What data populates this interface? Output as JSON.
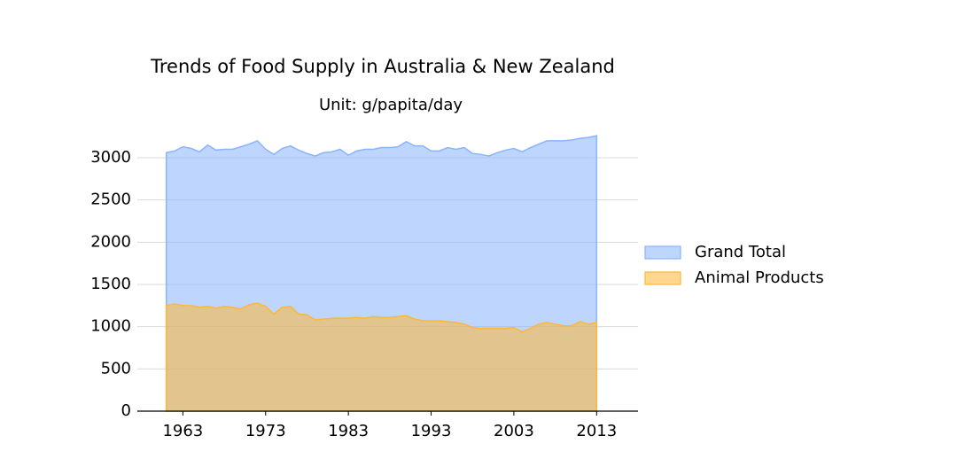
{
  "chart_data": {
    "type": "area",
    "title": "Trends of Food Supply in Australia & New Zealand",
    "subtitle": "Unit: g/papita/day",
    "x": [
      1961,
      1962,
      1963,
      1964,
      1965,
      1966,
      1967,
      1968,
      1969,
      1970,
      1971,
      1972,
      1973,
      1974,
      1975,
      1976,
      1977,
      1978,
      1979,
      1980,
      1981,
      1982,
      1983,
      1984,
      1985,
      1986,
      1987,
      1988,
      1989,
      1990,
      1991,
      1992,
      1993,
      1994,
      1995,
      1996,
      1997,
      1998,
      1999,
      2000,
      2001,
      2002,
      2003,
      2004,
      2005,
      2006,
      2007,
      2008,
      2009,
      2010,
      2011,
      2012,
      2013
    ],
    "series": [
      {
        "name": "Grand Total",
        "color": "#89b4fe",
        "values": [
          3060,
          3080,
          3130,
          3110,
          3070,
          3150,
          3090,
          3100,
          3100,
          3130,
          3160,
          3200,
          3100,
          3040,
          3110,
          3140,
          3090,
          3050,
          3020,
          3060,
          3070,
          3100,
          3030,
          3080,
          3100,
          3100,
          3120,
          3120,
          3130,
          3190,
          3140,
          3140,
          3080,
          3080,
          3120,
          3100,
          3120,
          3050,
          3040,
          3020,
          3060,
          3090,
          3110,
          3070,
          3120,
          3160,
          3200,
          3200,
          3200,
          3210,
          3230,
          3240,
          3260
        ]
      },
      {
        "name": "Animal Products",
        "color": "#ffb733",
        "values": [
          1250,
          1270,
          1250,
          1250,
          1230,
          1240,
          1220,
          1240,
          1230,
          1210,
          1260,
          1280,
          1240,
          1150,
          1230,
          1240,
          1150,
          1140,
          1080,
          1090,
          1100,
          1100,
          1100,
          1110,
          1100,
          1120,
          1110,
          1110,
          1120,
          1130,
          1090,
          1070,
          1070,
          1070,
          1060,
          1050,
          1030,
          990,
          980,
          980,
          980,
          980,
          990,
          940,
          980,
          1030,
          1050,
          1030,
          1010,
          1010,
          1060,
          1030,
          1050
        ]
      }
    ],
    "xlim": [
      1957.5,
      2018
    ],
    "xticks": [
      1963,
      1973,
      1983,
      1993,
      2003,
      2013
    ],
    "ylim": [
      0,
      3300
    ],
    "yticks": [
      0,
      500,
      1000,
      1500,
      2000,
      2500,
      3000
    ],
    "grid": true,
    "legend": "right"
  }
}
